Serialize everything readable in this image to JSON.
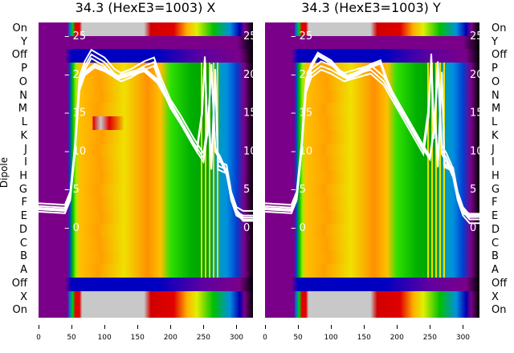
{
  "chart_data": {
    "type": "heatmap",
    "panels": [
      {
        "title": "34.3 (HexE3=1003) X"
      },
      {
        "title": "34.3 (HexE3=1003) Y"
      }
    ],
    "ylabel": "Dipole",
    "row_labels": [
      "On",
      "Y",
      "Off",
      "P",
      "O",
      "N",
      "M",
      "L",
      "K",
      "J",
      "I",
      "H",
      "G",
      "F",
      "E",
      "D",
      "C",
      "B",
      "A",
      "Off",
      "X",
      "On"
    ],
    "x_ticks": [
      0,
      50,
      100,
      150,
      200,
      250,
      300
    ],
    "xlim": [
      0,
      325
    ],
    "overlay_y_ticks": [
      0,
      5,
      10,
      15,
      20,
      25
    ],
    "overlay_ylim": [
      -3.5,
      27
    ],
    "overlay_lines": [
      {
        "name": "X",
        "points": [
          [
            0,
            2.5
          ],
          [
            40,
            2.3
          ],
          [
            48,
            4
          ],
          [
            55,
            10
          ],
          [
            62,
            19
          ],
          [
            70,
            21
          ],
          [
            80,
            22.5
          ],
          [
            90,
            22
          ],
          [
            100,
            21.5
          ],
          [
            115,
            20
          ],
          [
            125,
            19.5
          ],
          [
            140,
            20
          ],
          [
            160,
            21
          ],
          [
            175,
            21.5
          ],
          [
            185,
            19
          ],
          [
            200,
            16
          ],
          [
            215,
            14
          ],
          [
            235,
            11
          ],
          [
            250,
            9
          ],
          [
            258,
            14
          ],
          [
            262,
            8
          ],
          [
            268,
            20
          ],
          [
            272,
            8
          ],
          [
            285,
            7.5
          ],
          [
            292,
            4
          ],
          [
            300,
            2
          ],
          [
            310,
            1.5
          ],
          [
            325,
            1.5
          ]
        ]
      },
      {
        "name": "Y",
        "points": [
          [
            0,
            2.5
          ],
          [
            40,
            2.3
          ],
          [
            48,
            4
          ],
          [
            55,
            10
          ],
          [
            62,
            18
          ],
          [
            70,
            20
          ],
          [
            85,
            21
          ],
          [
            100,
            20.5
          ],
          [
            120,
            19.5
          ],
          [
            140,
            20
          ],
          [
            160,
            20.5
          ],
          [
            180,
            19
          ],
          [
            200,
            16
          ],
          [
            220,
            13
          ],
          [
            240,
            10
          ],
          [
            248,
            15
          ],
          [
            252,
            22
          ],
          [
            256,
            12
          ],
          [
            262,
            21
          ],
          [
            268,
            10
          ],
          [
            275,
            9
          ],
          [
            285,
            7
          ],
          [
            292,
            4
          ],
          [
            300,
            2
          ],
          [
            310,
            1
          ],
          [
            325,
            1
          ]
        ]
      }
    ]
  }
}
